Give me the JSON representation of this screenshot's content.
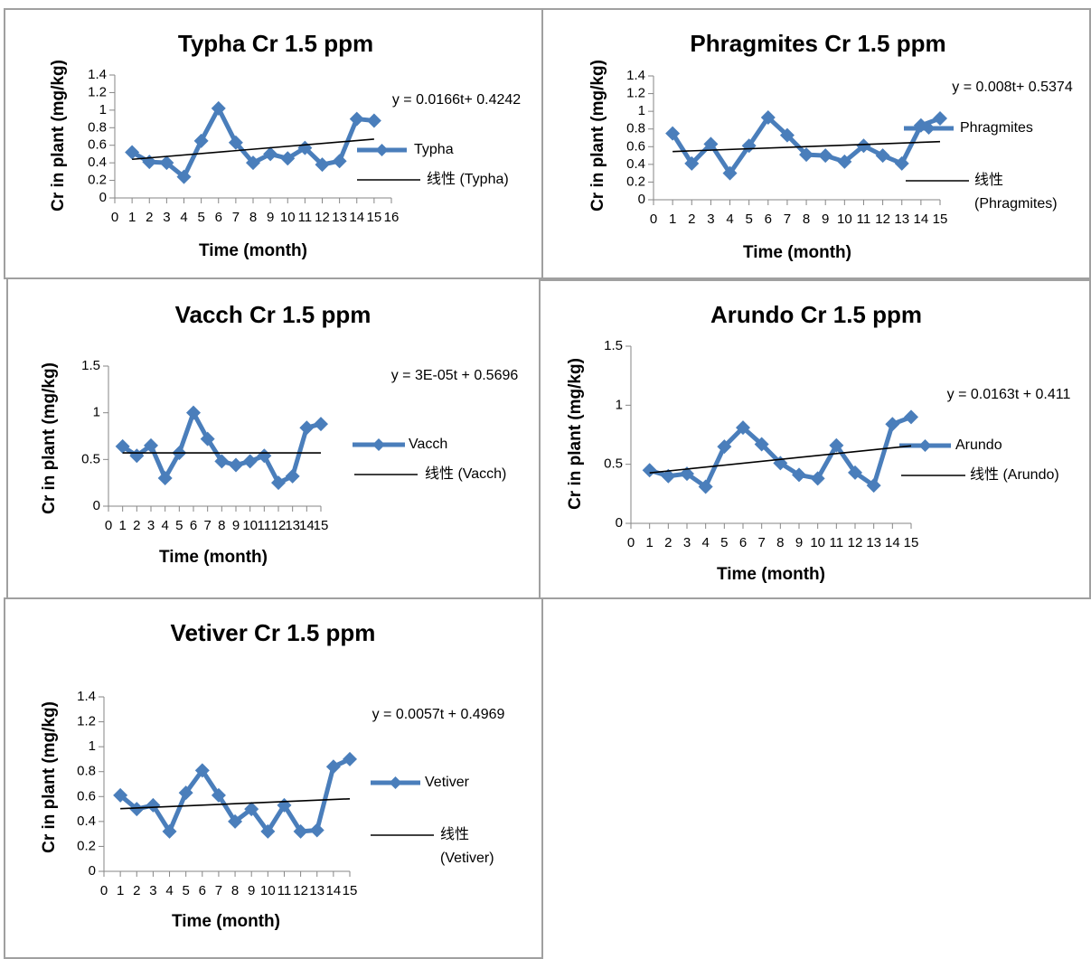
{
  "chart_data": [
    {
      "type": "line",
      "title": "Typha Cr 1.5 ppm",
      "x_label": "Time (month)",
      "y_label": "Cr in plant (mg/kg)",
      "annotation": "y = 0.0166t+ 0.4242",
      "x": [
        1,
        2,
        3,
        4,
        5,
        6,
        7,
        8,
        9,
        10,
        11,
        12,
        13,
        14,
        15
      ],
      "xlim": [
        0,
        16
      ],
      "xticks": [
        0,
        1,
        2,
        3,
        4,
        5,
        6,
        7,
        8,
        9,
        10,
        11,
        12,
        13,
        14,
        15,
        16
      ],
      "ylim": [
        0,
        1.4
      ],
      "yticks": [
        0,
        0.2,
        0.4,
        0.6,
        0.8,
        1,
        1.2,
        1.4
      ],
      "series": [
        {
          "name": "Typha",
          "color": "#4a7ebb",
          "values": [
            0.52,
            0.41,
            0.4,
            0.24,
            0.65,
            1.02,
            0.63,
            0.4,
            0.5,
            0.45,
            0.57,
            0.38,
            0.42,
            0.9,
            0.88
          ]
        },
        {
          "name": "线性 (Typha)",
          "color": "#000000",
          "x": [
            1,
            15
          ],
          "values": [
            0.44,
            0.67
          ]
        }
      ]
    },
    {
      "type": "line",
      "title": "Phragmites Cr 1.5 ppm",
      "x_label": "Time (month)",
      "y_label": "Cr in plant (mg/kg)",
      "annotation": "y = 0.008t+ 0.5374",
      "x": [
        1,
        2,
        3,
        4,
        5,
        6,
        7,
        8,
        9,
        10,
        11,
        12,
        13,
        14,
        15
      ],
      "xlim": [
        0,
        15
      ],
      "xticks": [
        0,
        1,
        2,
        3,
        4,
        5,
        6,
        7,
        8,
        9,
        10,
        11,
        12,
        13,
        14,
        15
      ],
      "ylim": [
        0,
        1.4
      ],
      "yticks": [
        0,
        0.2,
        0.4,
        0.6,
        0.8,
        1,
        1.2,
        1.4
      ],
      "series": [
        {
          "name": "Phragmites",
          "color": "#4a7ebb",
          "values": [
            0.75,
            0.41,
            0.63,
            0.3,
            0.61,
            0.93,
            0.73,
            0.51,
            0.5,
            0.43,
            0.61,
            0.5,
            0.41,
            0.84,
            0.92
          ]
        },
        {
          "name": "线性 (Phragmites)",
          "color": "#000000",
          "x": [
            1,
            15
          ],
          "values": [
            0.545,
            0.657
          ]
        }
      ]
    },
    {
      "type": "line",
      "title": "Vacch Cr 1.5 ppm",
      "x_label": "Time (month)",
      "y_label": "Cr in plant (mg/kg)",
      "annotation": "y = 3E-05t + 0.5696",
      "x": [
        1,
        2,
        3,
        4,
        5,
        6,
        7,
        8,
        9,
        10,
        11,
        12,
        13,
        14,
        15
      ],
      "xlim": [
        0,
        15
      ],
      "xticks": [
        0,
        1,
        2,
        3,
        4,
        5,
        6,
        7,
        8,
        9,
        10,
        11,
        12,
        13,
        14,
        15
      ],
      "ylim": [
        0,
        1.5
      ],
      "yticks": [
        0,
        0.5,
        1,
        1.5
      ],
      "series": [
        {
          "name": "Vacch",
          "color": "#4a7ebb",
          "values": [
            0.64,
            0.54,
            0.65,
            0.3,
            0.57,
            1.0,
            0.72,
            0.48,
            0.44,
            0.48,
            0.54,
            0.25,
            0.32,
            0.84,
            0.88
          ]
        },
        {
          "name": "线性 (Vacch)",
          "color": "#000000",
          "x": [
            1,
            15
          ],
          "values": [
            0.57,
            0.57
          ]
        }
      ]
    },
    {
      "type": "line",
      "title": "Arundo Cr 1.5 ppm",
      "x_label": "Time (month)",
      "y_label": "Cr in plant (mg/kg)",
      "annotation": "y = 0.0163t + 0.411",
      "x": [
        1,
        2,
        3,
        4,
        5,
        6,
        7,
        8,
        9,
        10,
        11,
        12,
        13,
        14,
        15
      ],
      "xlim": [
        0,
        15
      ],
      "xticks": [
        0,
        1,
        2,
        3,
        4,
        5,
        6,
        7,
        8,
        9,
        10,
        11,
        12,
        13,
        14,
        15
      ],
      "ylim": [
        0,
        1.5
      ],
      "yticks": [
        0,
        0.5,
        1,
        1.5
      ],
      "series": [
        {
          "name": "Arundo",
          "color": "#4a7ebb",
          "values": [
            0.45,
            0.4,
            0.42,
            0.31,
            0.65,
            0.81,
            0.67,
            0.51,
            0.41,
            0.38,
            0.66,
            0.43,
            0.32,
            0.84,
            0.9
          ]
        },
        {
          "name": "线性 (Arundo)",
          "color": "#000000",
          "x": [
            1,
            15
          ],
          "values": [
            0.427,
            0.656
          ]
        }
      ]
    },
    {
      "type": "line",
      "title": "Vetiver Cr 1.5 ppm",
      "x_label": "Time (month)",
      "y_label": "Cr in plant (mg/kg)",
      "annotation": "y = 0.0057t + 0.4969",
      "x": [
        1,
        2,
        3,
        4,
        5,
        6,
        7,
        8,
        9,
        10,
        11,
        12,
        13,
        14,
        15
      ],
      "xlim": [
        0,
        15
      ],
      "xticks": [
        0,
        1,
        2,
        3,
        4,
        5,
        6,
        7,
        8,
        9,
        10,
        11,
        12,
        13,
        14,
        15
      ],
      "ylim": [
        0,
        1.4
      ],
      "yticks": [
        0,
        0.2,
        0.4,
        0.6,
        0.8,
        1,
        1.2,
        1.4
      ],
      "series": [
        {
          "name": "Vetiver",
          "color": "#4a7ebb",
          "values": [
            0.61,
            0.5,
            0.53,
            0.32,
            0.63,
            0.81,
            0.61,
            0.4,
            0.5,
            0.32,
            0.53,
            0.32,
            0.33,
            0.84,
            0.9
          ]
        },
        {
          "name": "线性 (Vetiver)",
          "color": "#000000",
          "x": [
            1,
            15
          ],
          "values": [
            0.503,
            0.582
          ]
        }
      ]
    }
  ]
}
